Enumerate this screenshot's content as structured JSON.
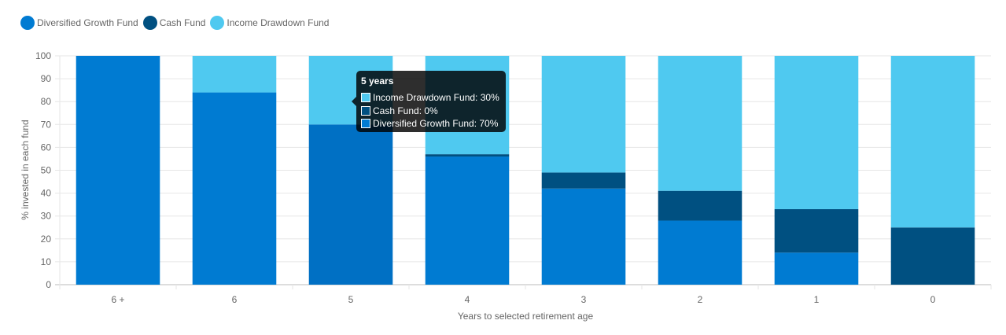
{
  "chart_data": {
    "type": "bar",
    "stacked": true,
    "categories": [
      "6 +",
      "6",
      "5",
      "4",
      "3",
      "2",
      "1",
      "0"
    ],
    "series": [
      {
        "name": "Diversified Growth Fund",
        "color": "#007bd2",
        "values": [
          100,
          84,
          70,
          56,
          42,
          28,
          14,
          0
        ]
      },
      {
        "name": "Cash Fund",
        "color": "#005081",
        "values": [
          0,
          0,
          0,
          1,
          7,
          13,
          19,
          25
        ]
      },
      {
        "name": "Income Drawdown Fund",
        "color": "#4fc9f0",
        "values": [
          0,
          16,
          30,
          43,
          51,
          59,
          67,
          75
        ]
      }
    ],
    "xlabel": "Years to selected retirement age",
    "ylabel": "% invested in each fund",
    "ylim": [
      0,
      100
    ],
    "yticks": [
      0,
      10,
      20,
      30,
      40,
      50,
      60,
      70,
      80,
      90,
      100
    ],
    "grid": true,
    "legend_position": "top-left"
  },
  "tooltip": {
    "title": "5 years",
    "rows": [
      {
        "label": "Income Drawdown Fund: 30%",
        "color": "#4fc9f0"
      },
      {
        "label": "Cash Fund: 0%",
        "color": "#005081"
      },
      {
        "label": "Diversified Growth Fund: 70%",
        "color": "#007bd2"
      }
    ]
  }
}
